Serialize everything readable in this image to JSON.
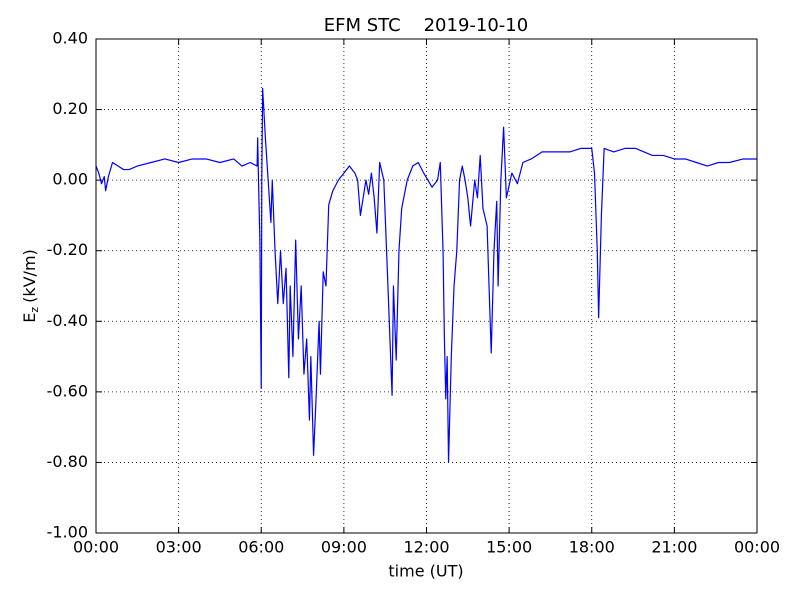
{
  "chart_data": {
    "type": "line",
    "title": "EFM STC    2019-10-10",
    "xlabel": "time (UT)",
    "ylabel_main": "E",
    "ylabel_sub": "z",
    "ylabel_unit": "(kV/m)",
    "xlim": [
      0,
      24
    ],
    "xticks": [
      {
        "value": 0,
        "label": "00:00"
      },
      {
        "value": 3,
        "label": "03:00"
      },
      {
        "value": 6,
        "label": "06:00"
      },
      {
        "value": 9,
        "label": "09:00"
      },
      {
        "value": 12,
        "label": "12:00"
      },
      {
        "value": 15,
        "label": "15:00"
      },
      {
        "value": 18,
        "label": "18:00"
      },
      {
        "value": 21,
        "label": "21:00"
      },
      {
        "value": 24,
        "label": "00:00"
      }
    ],
    "ylim": [
      -1.0,
      0.4
    ],
    "yticks": [
      {
        "value": 0.4,
        "label": "0.40"
      },
      {
        "value": 0.2,
        "label": "0.20"
      },
      {
        "value": 0.0,
        "label": "0.00"
      },
      {
        "value": -0.2,
        "label": "-0.20"
      },
      {
        "value": -0.4,
        "label": "-0.40"
      },
      {
        "value": -0.6,
        "label": "-0.60"
      },
      {
        "value": -0.8,
        "label": "-0.80"
      },
      {
        "value": -1.0,
        "label": "-1.00"
      }
    ],
    "grid": true,
    "color": "#0000ff",
    "x": [
      0.0,
      0.1,
      0.2,
      0.3,
      0.35,
      0.45,
      0.6,
      0.8,
      1.0,
      1.2,
      1.5,
      2.0,
      2.5,
      3.0,
      3.5,
      4.0,
      4.5,
      5.0,
      5.3,
      5.6,
      5.85,
      5.87,
      5.9,
      5.95,
      6.0,
      6.02,
      6.05,
      6.15,
      6.25,
      6.35,
      6.4,
      6.5,
      6.6,
      6.7,
      6.8,
      6.9,
      7.0,
      7.05,
      7.15,
      7.25,
      7.35,
      7.45,
      7.55,
      7.65,
      7.75,
      7.8,
      7.9,
      8.0,
      8.1,
      8.15,
      8.25,
      8.35,
      8.45,
      8.6,
      8.8,
      9.0,
      9.2,
      9.4,
      9.5,
      9.6,
      9.7,
      9.8,
      9.9,
      10.0,
      10.1,
      10.2,
      10.3,
      10.45,
      10.6,
      10.75,
      10.8,
      10.9,
      11.0,
      11.1,
      11.3,
      11.5,
      11.7,
      11.9,
      12.2,
      12.4,
      12.5,
      12.6,
      12.65,
      12.7,
      12.75,
      12.8,
      12.9,
      13.0,
      13.1,
      13.2,
      13.3,
      13.4,
      13.5,
      13.6,
      13.75,
      13.85,
      13.95,
      14.05,
      14.2,
      14.35,
      14.45,
      14.55,
      14.6,
      14.7,
      14.8,
      14.9,
      15.1,
      15.3,
      15.5,
      15.8,
      16.2,
      16.8,
      17.2,
      17.6,
      18.0,
      18.1,
      18.2,
      18.25,
      18.35,
      18.45,
      18.8,
      19.2,
      19.6,
      19.9,
      20.2,
      20.6,
      21.0,
      21.4,
      21.8,
      22.2,
      22.6,
      23.0,
      23.5,
      24.0
    ],
    "values": [
      0.04,
      0.02,
      -0.01,
      0.01,
      -0.03,
      0.01,
      0.05,
      0.04,
      0.03,
      0.03,
      0.04,
      0.05,
      0.06,
      0.05,
      0.06,
      0.06,
      0.05,
      0.06,
      0.04,
      0.05,
      0.04,
      0.12,
      0.0,
      -0.17,
      -0.59,
      0.0,
      0.26,
      0.12,
      0.0,
      -0.12,
      0.0,
      -0.2,
      -0.35,
      -0.2,
      -0.35,
      -0.25,
      -0.56,
      -0.3,
      -0.5,
      -0.17,
      -0.45,
      -0.3,
      -0.55,
      -0.45,
      -0.68,
      -0.5,
      -0.78,
      -0.6,
      -0.4,
      -0.55,
      -0.26,
      -0.3,
      -0.07,
      -0.03,
      0.0,
      0.02,
      0.04,
      0.02,
      0.0,
      -0.1,
      -0.05,
      0.0,
      -0.04,
      0.02,
      -0.05,
      -0.15,
      0.05,
      0.0,
      -0.3,
      -0.61,
      -0.3,
      -0.51,
      -0.2,
      -0.08,
      0.0,
      0.04,
      0.05,
      0.02,
      -0.02,
      0.0,
      0.05,
      -0.2,
      -0.45,
      -0.62,
      -0.5,
      -0.8,
      -0.5,
      -0.3,
      -0.2,
      0.0,
      0.04,
      0.0,
      -0.05,
      -0.13,
      0.0,
      -0.05,
      0.07,
      -0.08,
      -0.13,
      -0.49,
      -0.2,
      -0.06,
      -0.3,
      0.0,
      0.15,
      -0.05,
      0.02,
      -0.01,
      0.05,
      0.06,
      0.08,
      0.08,
      0.08,
      0.09,
      0.09,
      0.02,
      -0.2,
      -0.39,
      -0.1,
      0.09,
      0.08,
      0.09,
      0.09,
      0.08,
      0.07,
      0.07,
      0.06,
      0.06,
      0.05,
      0.04,
      0.05,
      0.05,
      0.06,
      0.06
    ]
  }
}
